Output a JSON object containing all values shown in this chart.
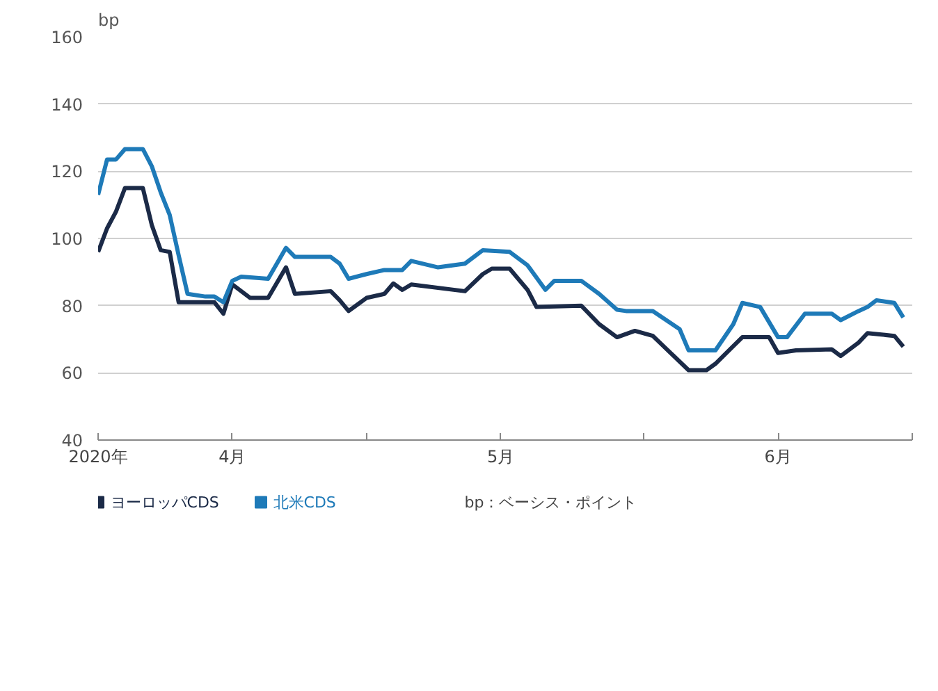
{
  "chart_data": {
    "type": "line",
    "ylabel": "bp",
    "ylim": [
      40,
      160
    ],
    "yticks": [
      40,
      60,
      80,
      100,
      120,
      140,
      160
    ],
    "xlim": [
      "2020-04-01",
      "2020-07-01"
    ],
    "xticks": [
      {
        "value": "2020-04-01",
        "label": "2020年"
      },
      {
        "value": "2020-04-16",
        "label": "4月"
      },
      {
        "value": "2020-05-01",
        "label": null
      },
      {
        "value": "2020-05-16",
        "label": "5月"
      },
      {
        "value": "2020-06-01",
        "label": null
      },
      {
        "value": "2020-06-16",
        "label": "6月"
      },
      {
        "value": "2020-07-01",
        "label": null
      }
    ],
    "grid": "y",
    "legend": "bottom",
    "line_style": "solid",
    "annotations": [
      "bp：ベーシス・ポイント"
    ],
    "series": [
      {
        "name": "ヨーロッパCDS",
        "color": "#1b2a47",
        "x": [
          "2020-04-01",
          "2020-04-02",
          "2020-04-03",
          "2020-04-04",
          "2020-04-06",
          "2020-04-07",
          "2020-04-08",
          "2020-04-09",
          "2020-04-10",
          "2020-04-14",
          "2020-04-15",
          "2020-04-16",
          "2020-04-17",
          "2020-04-18",
          "2020-04-20",
          "2020-04-22",
          "2020-04-23",
          "2020-04-27",
          "2020-04-28",
          "2020-04-29",
          "2020-05-01",
          "2020-05-03",
          "2020-05-04",
          "2020-05-05",
          "2020-05-06",
          "2020-05-12",
          "2020-05-14",
          "2020-05-15",
          "2020-05-17",
          "2020-05-19",
          "2020-05-20",
          "2020-05-25",
          "2020-05-27",
          "2020-05-29",
          "2020-05-31",
          "2020-06-02",
          "2020-06-04",
          "2020-06-06",
          "2020-06-08",
          "2020-06-09",
          "2020-06-12",
          "2020-06-15",
          "2020-06-16",
          "2020-06-18",
          "2020-06-22",
          "2020-06-23",
          "2020-06-25",
          "2020-06-26",
          "2020-06-29",
          "2020-06-30"
        ],
        "values": [
          96,
          103,
          108,
          115,
          115,
          104,
          96.5,
          96,
          81,
          81,
          77.6,
          86.3,
          84.3,
          82.3,
          82.3,
          91.4,
          83.5,
          84.3,
          81.6,
          78.4,
          82.3,
          83.5,
          86.6,
          84.7,
          86.3,
          84.3,
          89.4,
          91,
          91,
          84.7,
          79.6,
          80,
          74.5,
          70.6,
          72.5,
          71,
          65.9,
          60.8,
          60.8,
          62.7,
          70.6,
          70.6,
          65.9,
          66.7,
          67,
          65,
          69,
          71.8,
          71,
          67.8
        ]
      },
      {
        "name": "北米CDS",
        "color": "#1e7ab8",
        "x": [
          "2020-04-01",
          "2020-04-02",
          "2020-04-03",
          "2020-04-04",
          "2020-04-06",
          "2020-04-07",
          "2020-04-08",
          "2020-04-09",
          "2020-04-10",
          "2020-04-11",
          "2020-04-13",
          "2020-04-14",
          "2020-04-15",
          "2020-04-16",
          "2020-04-17",
          "2020-04-20",
          "2020-04-22",
          "2020-04-23",
          "2020-04-27",
          "2020-04-28",
          "2020-04-29",
          "2020-05-01",
          "2020-05-03",
          "2020-05-05",
          "2020-05-06",
          "2020-05-09",
          "2020-05-12",
          "2020-05-14",
          "2020-05-17",
          "2020-05-19",
          "2020-05-21",
          "2020-05-22",
          "2020-05-25",
          "2020-05-27",
          "2020-05-29",
          "2020-05-30",
          "2020-06-02",
          "2020-06-05",
          "2020-06-06",
          "2020-06-09",
          "2020-06-11",
          "2020-06-12",
          "2020-06-14",
          "2020-06-16",
          "2020-06-17",
          "2020-06-19",
          "2020-06-22",
          "2020-06-23",
          "2020-06-25",
          "2020-06-26",
          "2020-06-27",
          "2020-06-29",
          "2020-06-30"
        ],
        "values": [
          113,
          123.5,
          123.5,
          126.6,
          126.6,
          121.5,
          113.7,
          107,
          95,
          83.5,
          82.7,
          82.7,
          81,
          87.4,
          88.6,
          88,
          97.2,
          94.5,
          94.5,
          92.5,
          88,
          89.4,
          90.6,
          90.6,
          93.3,
          91.4,
          92.5,
          96.5,
          96,
          92,
          84.7,
          87.4,
          87.4,
          83.5,
          78.8,
          78.4,
          78.4,
          73,
          66.7,
          66.7,
          74.5,
          80.8,
          79.6,
          70.6,
          70.6,
          77.6,
          77.6,
          75.7,
          78.4,
          79.6,
          81.6,
          80.8,
          76.5
        ]
      }
    ]
  }
}
